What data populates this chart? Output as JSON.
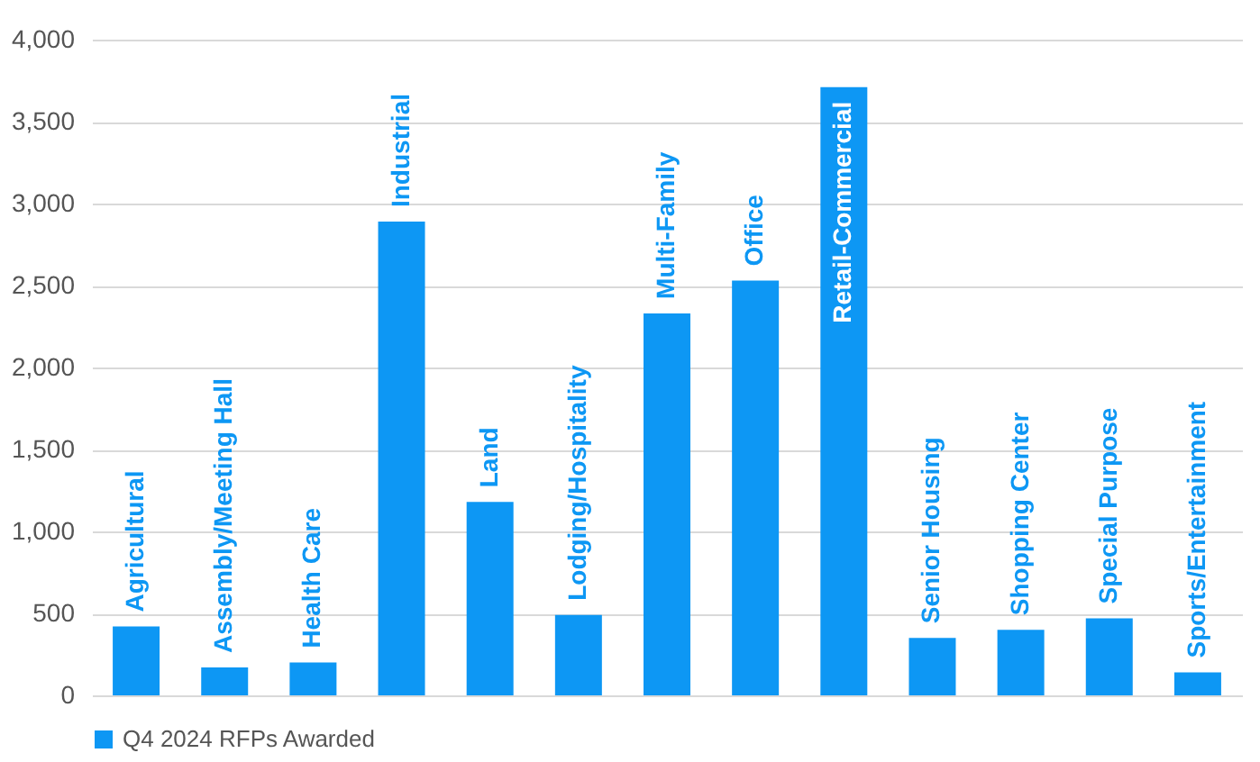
{
  "chart_data": {
    "type": "bar",
    "categories": [
      "Agricultural",
      "Assembly/Meeting Hall",
      "Health Care",
      "Industrial",
      "Land",
      "Lodging/Hospitality",
      "Multi-Family",
      "Office",
      "Retail-Commercial",
      "Senior Housing",
      "Shopping Center",
      "Special Purpose",
      "Sports/Entertainment"
    ],
    "series": [
      {
        "name": "Q4 2024 RFPs Awarded",
        "color": "#0d97f4",
        "values": [
          420,
          170,
          200,
          2890,
          1180,
          490,
          2330,
          2530,
          3710,
          350,
          400,
          470,
          140
        ]
      }
    ],
    "ylim": [
      0,
      4000
    ],
    "yticks": [
      0,
      {
        "value": 500,
        "label": "500"
      },
      {
        "value": 1000,
        "label": "1,000"
      },
      {
        "value": 1500,
        "label": "1,500"
      },
      {
        "value": 2000,
        "label": "2,000"
      },
      {
        "value": 2500,
        "label": "2,500"
      },
      {
        "value": 3000,
        "label": "3,000"
      },
      {
        "value": 3500,
        "label": "3,500"
      },
      {
        "value": 4000,
        "label": "4,000"
      }
    ],
    "grid": "y",
    "legend": "bottom"
  }
}
